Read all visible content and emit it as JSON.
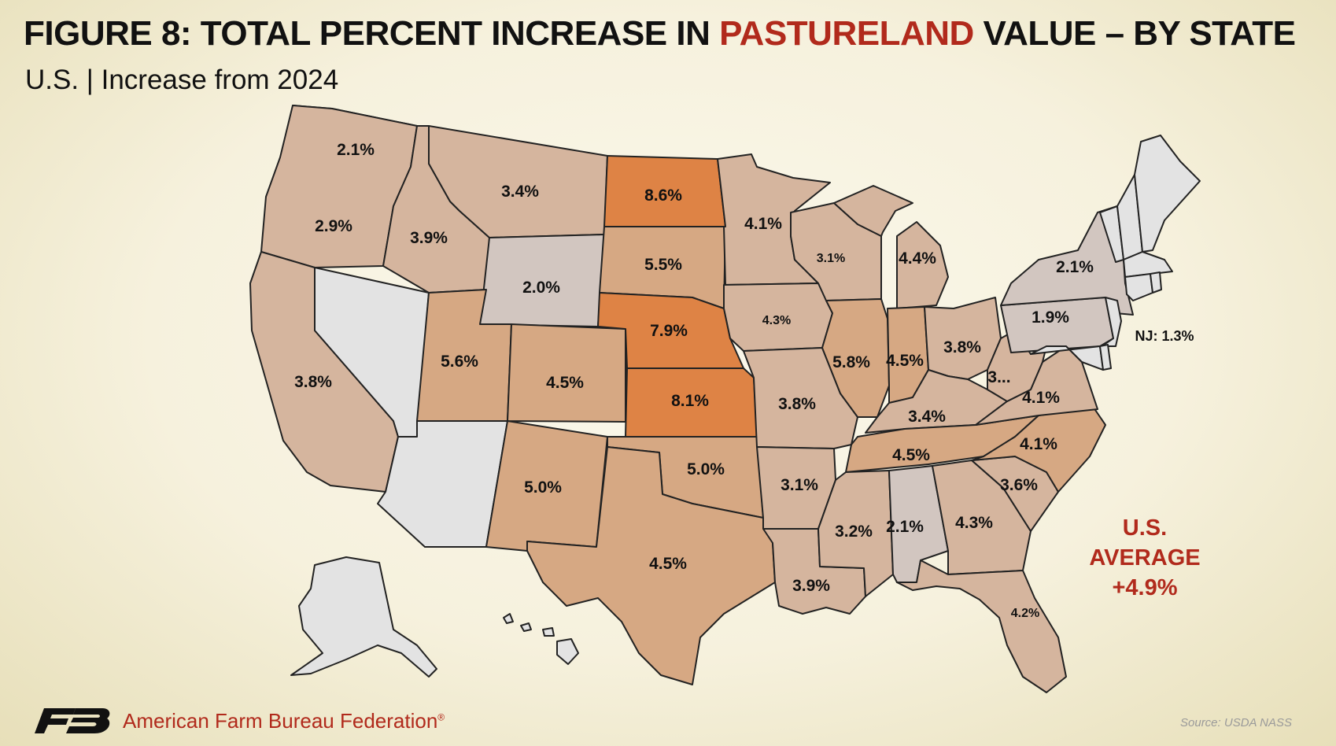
{
  "header": {
    "title_pre": "FIGURE 8: TOTAL PERCENT INCREASE IN ",
    "title_highlight": "PASTURELAND",
    "title_post": " VALUE – BY STATE",
    "subtitle": "U.S. | Increase from 2024"
  },
  "states": {
    "WA": "2.1%",
    "OR": "2.9%",
    "CA": "3.8%",
    "ID": "3.9%",
    "MT": "3.4%",
    "WY": "2.0%",
    "UT": "5.6%",
    "CO": "4.5%",
    "NM": "5.0%",
    "ND": "8.6%",
    "SD": "5.5%",
    "NE": "7.9%",
    "KS": "8.1%",
    "OK": "5.0%",
    "TX": "4.5%",
    "MN": "4.1%",
    "IA": "4.3%",
    "MO": "3.8%",
    "AR": "3.1%",
    "LA": "3.9%",
    "WI": "3.1%",
    "IL": "5.8%",
    "MI": "4.4%",
    "IN": "4.5%",
    "OH": "3.8%",
    "KY": "3.4%",
    "TN": "4.5%",
    "MS": "3.2%",
    "AL": "2.1%",
    "GA": "4.3%",
    "FL": "4.2%",
    "SC": "3.6%",
    "NC": "4.1%",
    "VA": "4.1%",
    "WV": "3...",
    "PA": "1.9%",
    "NY": "2.1%",
    "NJ": "NJ: 1.3%"
  },
  "legend": {
    "avg_line1": "U.S.",
    "avg_line2": "AVERAGE",
    "avg_line3": "+4.9%"
  },
  "footer": {
    "org": "American Farm Bureau Federation",
    "reg": "®",
    "source": "Source: USDA NASS"
  },
  "colors": {
    "highlight_red": "#b12a1c",
    "high_increase": "#de8345",
    "mid_increase": "#d6a883",
    "low_mid_increase": "#d5b59e",
    "low_increase": "#d2c6c0",
    "no_data": "#e3e3e3"
  }
}
